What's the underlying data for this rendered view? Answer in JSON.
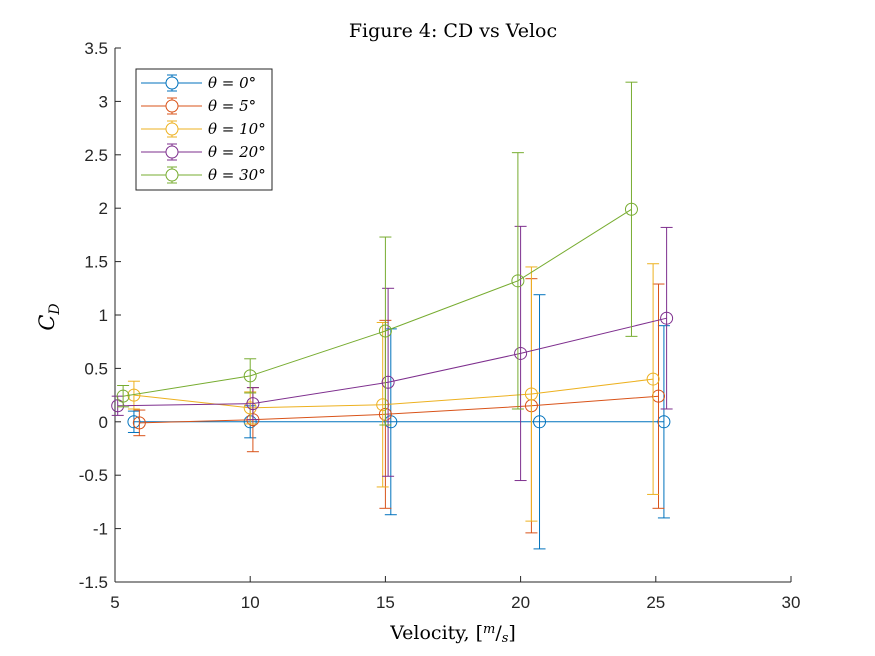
{
  "chart_data": {
    "type": "line",
    "title": "Figure 4: CD vs Veloc",
    "xlabel": "Velocity, [m/s]",
    "ylabel": "C_D",
    "xlim": [
      5,
      30
    ],
    "ylim": [
      -1.5,
      3.5
    ],
    "xticks": [
      "5",
      "10",
      "15",
      "20",
      "25",
      "30"
    ],
    "yticks": [
      "-1.5",
      "-1",
      "-0.5",
      "0",
      "0.5",
      "1",
      "1.5",
      "2",
      "2.5",
      "3",
      "3.5"
    ],
    "grid": false,
    "legend_position": "top-left",
    "markers": "open-circle",
    "error_bars": true,
    "series": [
      {
        "name": "θ = 0°",
        "color": "#0072BD",
        "x": [
          5.7,
          10.0,
          15.2,
          20.7,
          25.3
        ],
        "y": [
          0.0,
          0.0,
          0.0,
          0.0,
          0.0
        ],
        "err": [
          0.1,
          0.15,
          0.87,
          1.19,
          0.9
        ]
      },
      {
        "name": "θ = 5°",
        "color": "#D95319",
        "x": [
          5.9,
          10.1,
          15.0,
          20.4,
          25.1
        ],
        "y": [
          -0.01,
          0.02,
          0.07,
          0.15,
          0.24
        ],
        "err": [
          0.12,
          0.3,
          0.88,
          1.19,
          1.05
        ]
      },
      {
        "name": "θ = 10°",
        "color": "#EDB120",
        "x": [
          5.7,
          10.0,
          14.9,
          20.4,
          24.9
        ],
        "y": [
          0.25,
          0.13,
          0.16,
          0.26,
          0.4
        ],
        "err": [
          0.13,
          0.15,
          0.77,
          1.19,
          1.08
        ]
      },
      {
        "name": "θ = 20°",
        "color": "#7E2F8E",
        "x": [
          5.1,
          10.1,
          15.1,
          20.0,
          25.4
        ],
        "y": [
          0.15,
          0.17,
          0.37,
          0.64,
          0.97
        ],
        "err": [
          0.09,
          0.15,
          0.88,
          1.19,
          0.85
        ]
      },
      {
        "name": "θ = 30°",
        "color": "#77AC30",
        "x": [
          5.3,
          10.0,
          15.0,
          19.9,
          24.1
        ],
        "y": [
          0.24,
          0.43,
          0.85,
          1.32,
          1.99
        ],
        "err": [
          0.1,
          0.16,
          0.88,
          1.2,
          1.19
        ]
      }
    ]
  }
}
